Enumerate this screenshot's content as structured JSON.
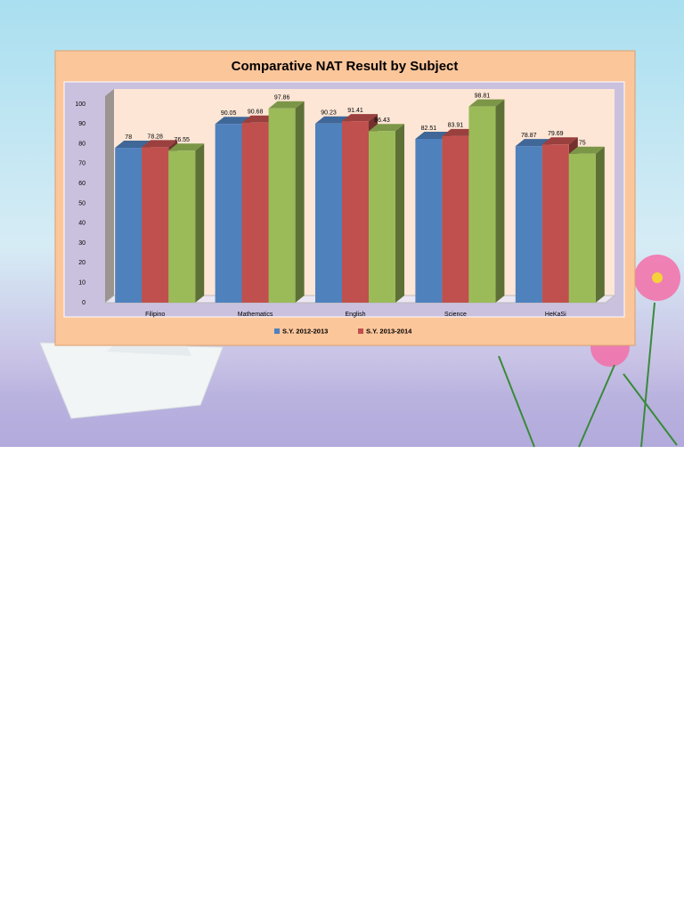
{
  "chart_data": {
    "type": "bar3d",
    "title": "Comparative NAT Result by Subject",
    "categories": [
      "Filipino",
      "Mathematics",
      "English",
      "Science",
      "HeKaSi"
    ],
    "series": [
      {
        "name": "S.Y. 2012-2013",
        "color": "#4f81bd",
        "values": [
          78,
          90.05,
          90.23,
          82.51,
          78.87
        ]
      },
      {
        "name": "S.Y. 2013-2014",
        "color": "#c0504d",
        "values": [
          78.28,
          90.68,
          91.41,
          83.91,
          79.69
        ]
      },
      {
        "color": "#9bbb59",
        "values": [
          76.55,
          97.86,
          86.43,
          98.81,
          75
        ]
      }
    ],
    "ylim": [
      0,
      100
    ],
    "yticks": [
      0,
      10,
      20,
      30,
      40,
      50,
      60,
      70,
      80,
      90,
      100
    ],
    "grid": false,
    "legend": "bottom"
  }
}
